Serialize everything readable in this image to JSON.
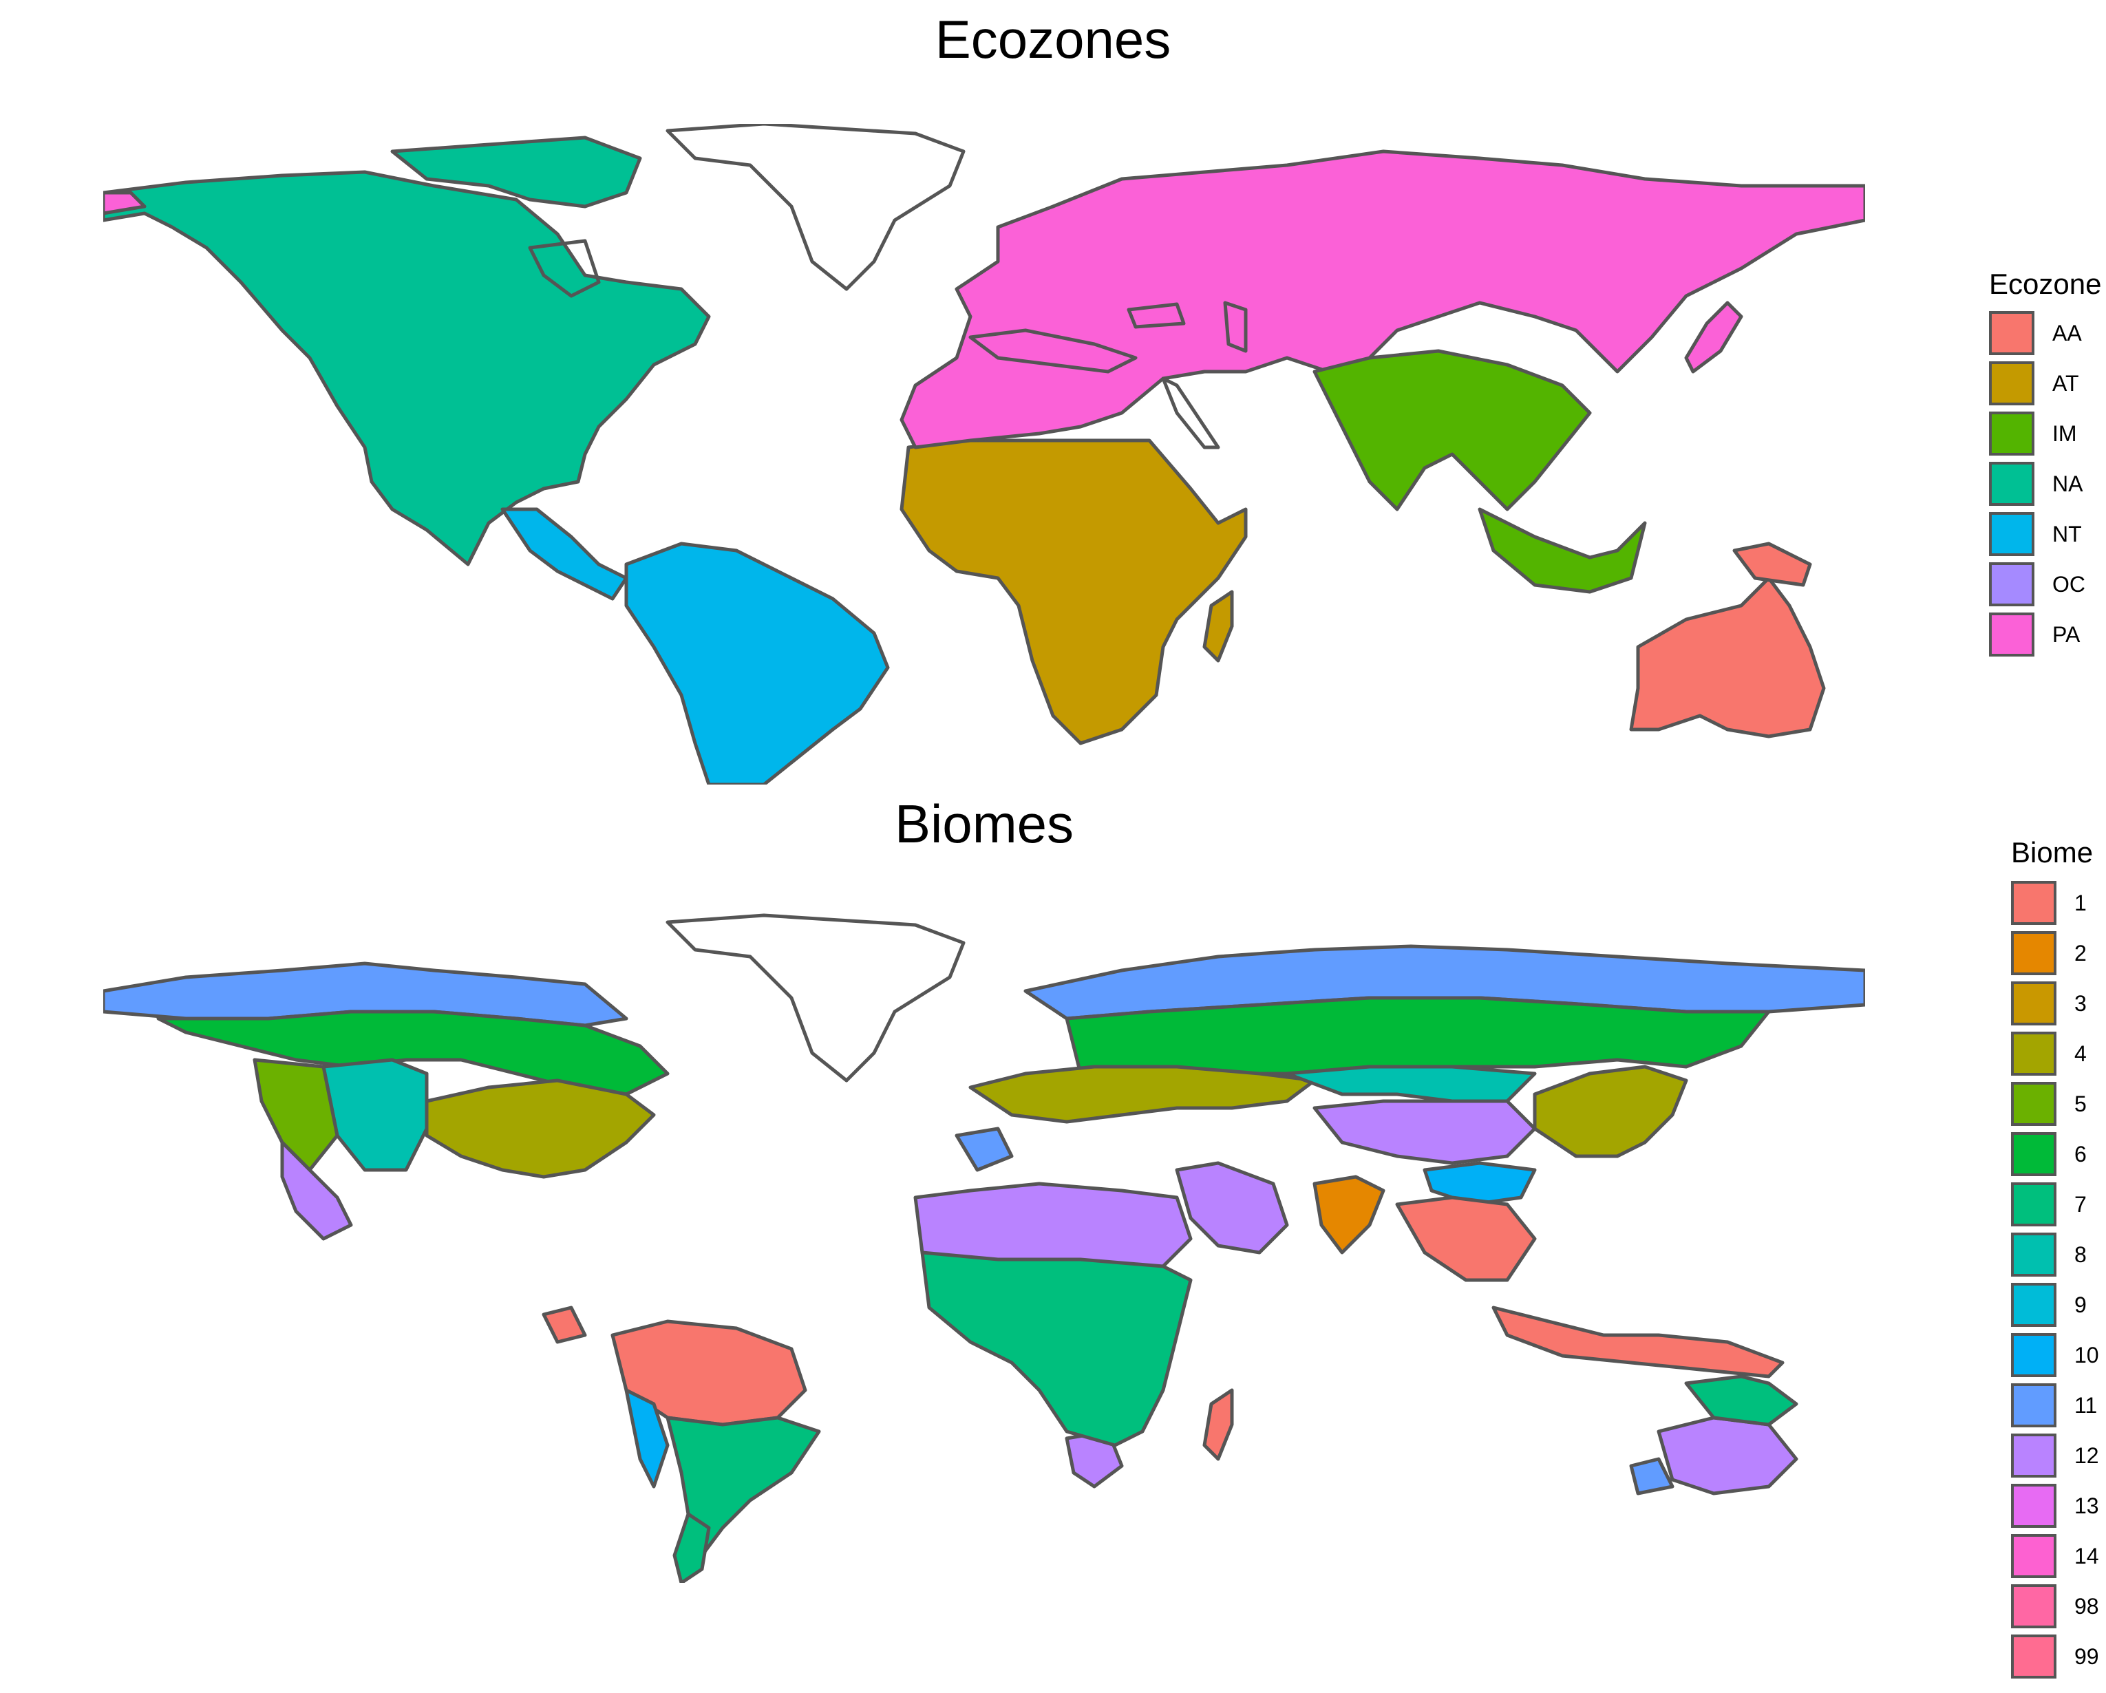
{
  "figure": {
    "top_panel": {
      "title": "Ecozones",
      "legend_title": "Ecozone",
      "legend": [
        {
          "label": "AA",
          "color": "#F8766D"
        },
        {
          "label": "AT",
          "color": "#C49A00"
        },
        {
          "label": "IM",
          "color": "#53B400"
        },
        {
          "label": "NA",
          "color": "#00C094"
        },
        {
          "label": "NT",
          "color": "#00B6EB"
        },
        {
          "label": "OC",
          "color": "#A58AFF"
        },
        {
          "label": "PA",
          "color": "#FB61D7"
        }
      ]
    },
    "bottom_panel": {
      "title": "Biomes",
      "legend_title": "Biome",
      "legend": [
        {
          "label": "1",
          "color": "#F8766D"
        },
        {
          "label": "2",
          "color": "#E58700"
        },
        {
          "label": "3",
          "color": "#C99800"
        },
        {
          "label": "4",
          "color": "#A3A500"
        },
        {
          "label": "5",
          "color": "#6BB100"
        },
        {
          "label": "6",
          "color": "#00BA38"
        },
        {
          "label": "7",
          "color": "#00BF7D"
        },
        {
          "label": "8",
          "color": "#00C0AF"
        },
        {
          "label": "9",
          "color": "#00BCD8"
        },
        {
          "label": "10",
          "color": "#00B0F6"
        },
        {
          "label": "11",
          "color": "#619CFF"
        },
        {
          "label": "12",
          "color": "#B983FF"
        },
        {
          "label": "13",
          "color": "#E76BF3"
        },
        {
          "label": "14",
          "color": "#FD61D1"
        },
        {
          "label": "98",
          "color": "#FF67A4"
        },
        {
          "label": "99",
          "color": "#FF6C91"
        }
      ]
    },
    "outline_color": "#555555"
  }
}
